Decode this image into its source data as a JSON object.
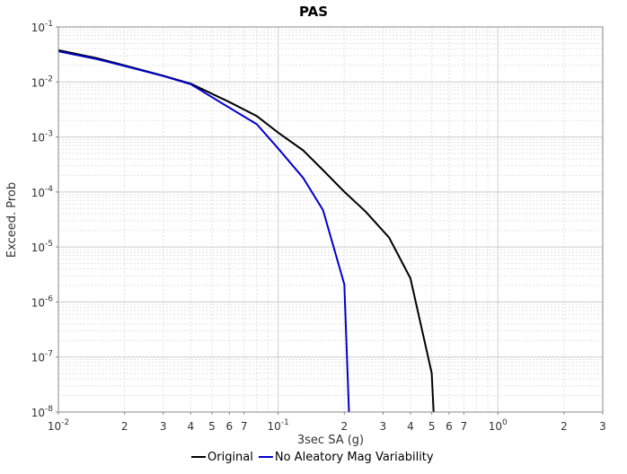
{
  "chart_data": {
    "type": "line",
    "title": "PAS",
    "xlabel": "3sec SA (g)",
    "ylabel": "Exceed. Prob",
    "xscale": "log",
    "yscale": "log",
    "xlim": [
      0.01,
      3
    ],
    "ylim": [
      1e-08,
      0.1
    ],
    "grid": true,
    "legend": "bottom",
    "x_ticks": [
      {
        "value": 0.01,
        "base": "10",
        "exp": "-2"
      },
      {
        "value": 0.02,
        "label": "2"
      },
      {
        "value": 0.03,
        "label": "3"
      },
      {
        "value": 0.04,
        "label": "4"
      },
      {
        "value": 0.05,
        "label": "5"
      },
      {
        "value": 0.06,
        "label": "6"
      },
      {
        "value": 0.07,
        "label": "7"
      },
      {
        "value": 0.1,
        "base": "10",
        "exp": "-1"
      },
      {
        "value": 0.2,
        "label": "2"
      },
      {
        "value": 0.3,
        "label": "3"
      },
      {
        "value": 0.4,
        "label": "4"
      },
      {
        "value": 0.5,
        "label": "5"
      },
      {
        "value": 0.6,
        "label": "6"
      },
      {
        "value": 0.7,
        "label": "7"
      },
      {
        "value": 1,
        "base": "10",
        "exp": "0"
      },
      {
        "value": 2,
        "label": "2"
      },
      {
        "value": 3,
        "label": "3"
      }
    ],
    "y_ticks": [
      {
        "value": 0.1,
        "base": "10",
        "exp": "-1"
      },
      {
        "value": 0.01,
        "base": "10",
        "exp": "-2"
      },
      {
        "value": 0.001,
        "base": "10",
        "exp": "-3"
      },
      {
        "value": 0.0001,
        "base": "10",
        "exp": "-4"
      },
      {
        "value": 1e-05,
        "base": "10",
        "exp": "-5"
      },
      {
        "value": 1e-06,
        "base": "10",
        "exp": "-6"
      },
      {
        "value": 1e-07,
        "base": "10",
        "exp": "-7"
      },
      {
        "value": 1e-08,
        "base": "10",
        "exp": "-8"
      }
    ],
    "series": [
      {
        "name": "Original",
        "color": "#000000",
        "points": [
          [
            0.01,
            0.038
          ],
          [
            0.015,
            0.027
          ],
          [
            0.02,
            0.02
          ],
          [
            0.03,
            0.013
          ],
          [
            0.04,
            0.0093
          ],
          [
            0.06,
            0.0043
          ],
          [
            0.08,
            0.0024
          ],
          [
            0.1,
            0.0012
          ],
          [
            0.13,
            0.00057
          ],
          [
            0.16,
            0.00025
          ],
          [
            0.2,
            0.000101
          ],
          [
            0.25,
            4.4e-05
          ],
          [
            0.32,
            1.48e-05
          ],
          [
            0.4,
            2.7e-06
          ],
          [
            0.5,
            5.1e-08
          ],
          [
            0.51,
            1e-08
          ]
        ]
      },
      {
        "name": "No Aleatory Mag Variability",
        "color": "#0000cc",
        "points": [
          [
            0.01,
            0.036
          ],
          [
            0.015,
            0.026
          ],
          [
            0.02,
            0.0195
          ],
          [
            0.03,
            0.0128
          ],
          [
            0.04,
            0.0091
          ],
          [
            0.06,
            0.0034
          ],
          [
            0.08,
            0.0017
          ],
          [
            0.1,
            0.00062
          ],
          [
            0.13,
            0.00018
          ],
          [
            0.16,
            4.7e-05
          ],
          [
            0.2,
            2.1e-06
          ],
          [
            0.21,
            1e-08
          ]
        ]
      }
    ]
  }
}
